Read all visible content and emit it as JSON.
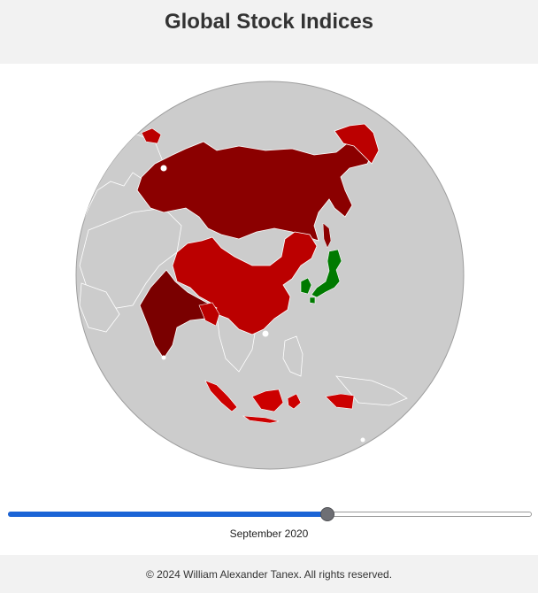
{
  "header": {
    "title": "Global Stock Indices"
  },
  "globe": {
    "ocean_color": "#cccccc",
    "land_color": "#cccccc",
    "border_color": "#ffffff",
    "countries": [
      {
        "name": "Russia",
        "color": "#8b0000"
      },
      {
        "name": "China",
        "color": "#bb0000"
      },
      {
        "name": "India",
        "color": "#7a0000"
      },
      {
        "name": "Japan",
        "color": "#007a00"
      },
      {
        "name": "South Korea",
        "color": "#007a00"
      },
      {
        "name": "Indonesia",
        "color": "#cc0000"
      },
      {
        "name": "Philippines",
        "color": "#cccccc"
      },
      {
        "name": "Bangladesh",
        "color": "#bb0000"
      },
      {
        "name": "Myanmar",
        "color": "#bb0000"
      },
      {
        "name": "Alaska",
        "color": "#cc0000"
      }
    ]
  },
  "timeline": {
    "progress": 0.61,
    "current_label": "September 2020",
    "fill_color": "#1b64d6"
  },
  "footer": {
    "copyright": "© 2024 William Alexander Tanex. All rights reserved."
  }
}
